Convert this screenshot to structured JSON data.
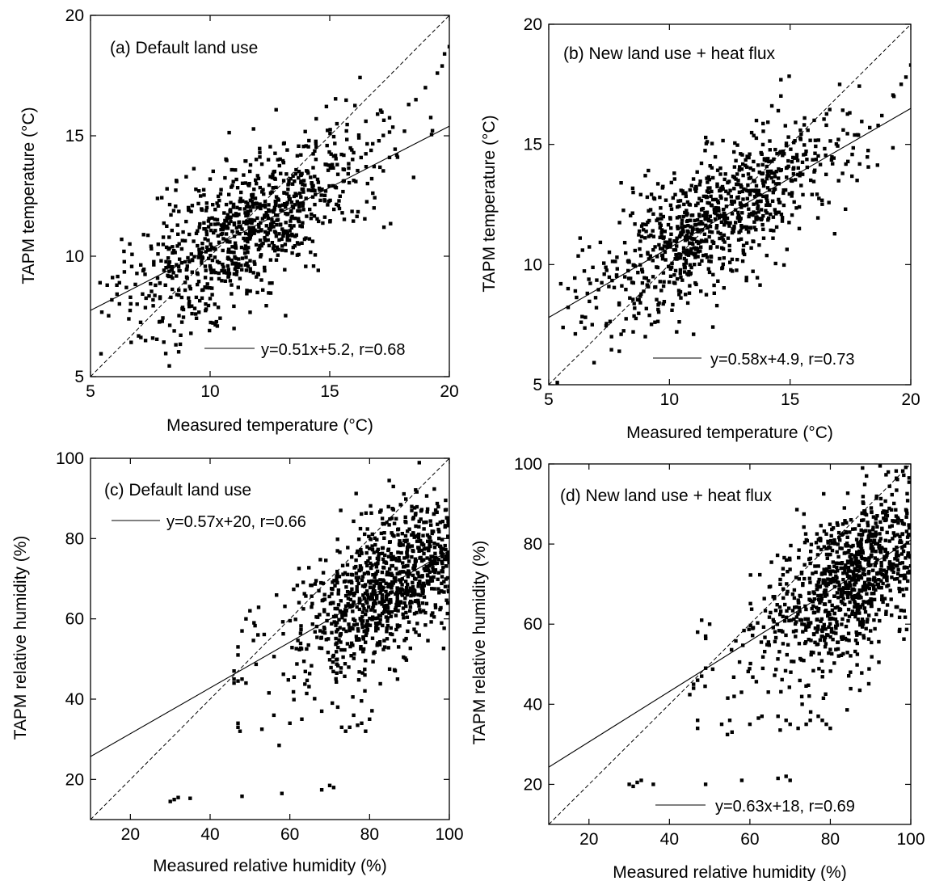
{
  "chart_data": [
    {
      "type": "scatter",
      "panel_label": "(a)",
      "title": "Default land use",
      "xlabel": "Measured temperature (°C)",
      "ylabel": "TAPM temperature (°C)",
      "xlim": [
        5,
        20
      ],
      "ylim": [
        5,
        20
      ],
      "xticks": [
        5,
        10,
        15,
        20
      ],
      "yticks": [
        5,
        10,
        15,
        20
      ],
      "legend": "y=0.51x+5.2, r=0.68",
      "legend_position": "bottom-right",
      "fit": {
        "slope": 0.51,
        "intercept": 5.2
      },
      "one_to_one_line": true,
      "generator": {
        "seed": 11,
        "n": 900,
        "cx": 11.8,
        "sx": 2.5,
        "xmin": 5.3,
        "xmax": 20,
        "slope": 0.51,
        "intercept": 5.2,
        "noise": 1.4
      },
      "points": [
        [
          5.4,
          8.9
        ],
        [
          5.7,
          8.8
        ],
        [
          6.1,
          8.8
        ],
        [
          6.3,
          10.7
        ],
        [
          6.4,
          10.2
        ],
        [
          6.5,
          8.7
        ],
        [
          6.6,
          7.4
        ],
        [
          7.2,
          9.4
        ],
        [
          7.3,
          6.5
        ],
        [
          7.6,
          6.6
        ],
        [
          8.0,
          7.3
        ],
        [
          8.5,
          6.9
        ],
        [
          9.2,
          6.8
        ],
        [
          9.4,
          7.6
        ],
        [
          10.3,
          7.1
        ],
        [
          11.0,
          7.0
        ],
        [
          7.8,
          12.4
        ],
        [
          8.2,
          12.8
        ],
        [
          8.6,
          13.1
        ],
        [
          9.0,
          13.3
        ],
        [
          9.6,
          12.5
        ],
        [
          10.0,
          13.2
        ],
        [
          15.3,
          15.5
        ],
        [
          15.7,
          15.2
        ],
        [
          16.0,
          14.3
        ],
        [
          17.0,
          15.9
        ],
        [
          17.5,
          14.1
        ],
        [
          17.8,
          14.2
        ],
        [
          18.3,
          16.3
        ],
        [
          18.6,
          16.5
        ],
        [
          19.0,
          17.0
        ],
        [
          19.5,
          17.6
        ],
        [
          19.7,
          17.9
        ],
        [
          19.8,
          18.4
        ],
        [
          20.0,
          18.7
        ]
      ]
    },
    {
      "type": "scatter",
      "panel_label": "(b)",
      "title": "New land use + heat flux",
      "xlabel": "Measured temperature (°C)",
      "ylabel": "TAPM temperature (°C)",
      "xlim": [
        5,
        20
      ],
      "ylim": [
        5,
        20
      ],
      "xticks": [
        5,
        10,
        15,
        20
      ],
      "yticks": [
        5,
        10,
        15,
        20
      ],
      "legend": "y=0.58x+4.9, r=0.73",
      "legend_position": "bottom-right",
      "fit": {
        "slope": 0.58,
        "intercept": 4.9
      },
      "one_to_one_line": true,
      "generator": {
        "seed": 23,
        "n": 900,
        "cx": 11.8,
        "sx": 2.5,
        "xmin": 5.3,
        "xmax": 20,
        "slope": 0.58,
        "intercept": 4.9,
        "noise": 1.3
      },
      "points": [
        [
          5.5,
          9.2
        ],
        [
          5.8,
          9.0
        ],
        [
          6.1,
          8.9
        ],
        [
          6.3,
          11.1
        ],
        [
          6.4,
          10.6
        ],
        [
          6.6,
          8.8
        ],
        [
          6.8,
          7.5
        ],
        [
          7.3,
          9.6
        ],
        [
          7.6,
          7.0
        ],
        [
          8.0,
          7.1
        ],
        [
          8.5,
          7.2
        ],
        [
          9.0,
          7.0
        ],
        [
          9.4,
          7.6
        ],
        [
          10.3,
          7.2
        ],
        [
          11.0,
          7.1
        ],
        [
          11.8,
          7.4
        ],
        [
          8.0,
          13.4
        ],
        [
          8.5,
          13.0
        ],
        [
          9.0,
          13.7
        ],
        [
          9.6,
          12.8
        ],
        [
          10.2,
          13.8
        ],
        [
          15.6,
          16.1
        ],
        [
          16.0,
          16.0
        ],
        [
          16.5,
          15.8
        ],
        [
          17.2,
          15.6
        ],
        [
          17.8,
          15.4
        ],
        [
          18.3,
          15.7
        ],
        [
          18.8,
          16.2
        ],
        [
          19.3,
          17.0
        ],
        [
          19.6,
          17.5
        ],
        [
          19.8,
          17.8
        ],
        [
          20.0,
          18.3
        ]
      ]
    },
    {
      "type": "scatter",
      "panel_label": "(c)",
      "title": "Default land use",
      "xlabel": "Measured relative humidity (%)",
      "ylabel": "TAPM relative humidity (%)",
      "xlim": [
        10,
        100
      ],
      "ylim": [
        10,
        100
      ],
      "xticks": [
        20,
        40,
        60,
        80,
        100
      ],
      "yticks": [
        20,
        40,
        60,
        80,
        100
      ],
      "legend": "y=0.57x+20, r=0.66",
      "legend_position": "top-left",
      "fit": {
        "slope": 0.57,
        "intercept": 20
      },
      "one_to_one_line": true,
      "generator": {
        "seed": 37,
        "n": 950,
        "cx": 86,
        "sx": 12,
        "xmin": 46,
        "xmax": 100,
        "slope": 0.57,
        "intercept": 20,
        "noise": 9
      },
      "points": [
        [
          30,
          14.5
        ],
        [
          31,
          15
        ],
        [
          32,
          15.5
        ],
        [
          35,
          15.3
        ],
        [
          48,
          15.8
        ],
        [
          58,
          16.5
        ],
        [
          68,
          17.4
        ],
        [
          70,
          18.5
        ],
        [
          71,
          18
        ],
        [
          47,
          34
        ],
        [
          47,
          33
        ],
        [
          47.5,
          32
        ],
        [
          53,
          32.5
        ],
        [
          56,
          36
        ],
        [
          60,
          34
        ],
        [
          63,
          35
        ],
        [
          68,
          37
        ],
        [
          72,
          38
        ],
        [
          73,
          33
        ],
        [
          74,
          32
        ],
        [
          75,
          33
        ],
        [
          77,
          33.5
        ],
        [
          78,
          34
        ],
        [
          79,
          32
        ],
        [
          80,
          35
        ],
        [
          76,
          36
        ],
        [
          46,
          45
        ],
        [
          46,
          44
        ],
        [
          47,
          44.5
        ],
        [
          48,
          45
        ],
        [
          49,
          44
        ],
        [
          46,
          47
        ],
        [
          47,
          51
        ],
        [
          47,
          53
        ],
        [
          48,
          57
        ],
        [
          49,
          60
        ],
        [
          50,
          62
        ],
        [
          51,
          59
        ],
        [
          52,
          56
        ],
        [
          87,
          45
        ]
      ]
    },
    {
      "type": "scatter",
      "panel_label": "(d)",
      "title": "New land use + heat flux",
      "xlabel": "Measured relative humidity (%)",
      "ylabel": "TAPM relative humidity (%)",
      "xlim": [
        10,
        100
      ],
      "ylim": [
        10,
        100
      ],
      "xticks": [
        20,
        40,
        60,
        80,
        100
      ],
      "yticks": [
        20,
        40,
        60,
        80,
        100
      ],
      "legend": "y=0.63x+18, r=0.69",
      "legend_position": "bottom-right",
      "fit": {
        "slope": 0.63,
        "intercept": 18
      },
      "one_to_one_line": true,
      "generator": {
        "seed": 53,
        "n": 950,
        "cx": 86,
        "sx": 12,
        "xmin": 45,
        "xmax": 100,
        "slope": 0.63,
        "intercept": 18,
        "noise": 9.5
      },
      "points": [
        [
          30,
          20
        ],
        [
          31,
          19.5
        ],
        [
          32,
          20.5
        ],
        [
          33,
          21
        ],
        [
          36,
          20
        ],
        [
          49,
          20
        ],
        [
          58,
          21
        ],
        [
          67,
          21.5
        ],
        [
          69,
          22
        ],
        [
          70,
          21
        ],
        [
          47,
          36
        ],
        [
          47,
          34
        ],
        [
          53,
          35
        ],
        [
          55,
          36
        ],
        [
          60,
          35
        ],
        [
          63,
          37
        ],
        [
          67,
          37
        ],
        [
          69,
          36
        ],
        [
          70,
          35
        ],
        [
          72,
          34
        ],
        [
          73,
          40
        ],
        [
          74,
          35
        ],
        [
          75,
          36
        ],
        [
          77,
          37
        ],
        [
          78,
          36
        ],
        [
          79,
          35
        ],
        [
          80,
          34
        ],
        [
          46,
          45
        ],
        [
          46,
          44
        ],
        [
          47,
          46
        ],
        [
          48,
          47
        ],
        [
          49,
          49
        ],
        [
          47,
          58
        ],
        [
          48,
          61
        ],
        [
          49,
          57
        ],
        [
          50,
          60
        ],
        [
          85,
          48
        ],
        [
          88,
          99
        ],
        [
          89,
          97
        ]
      ]
    }
  ]
}
